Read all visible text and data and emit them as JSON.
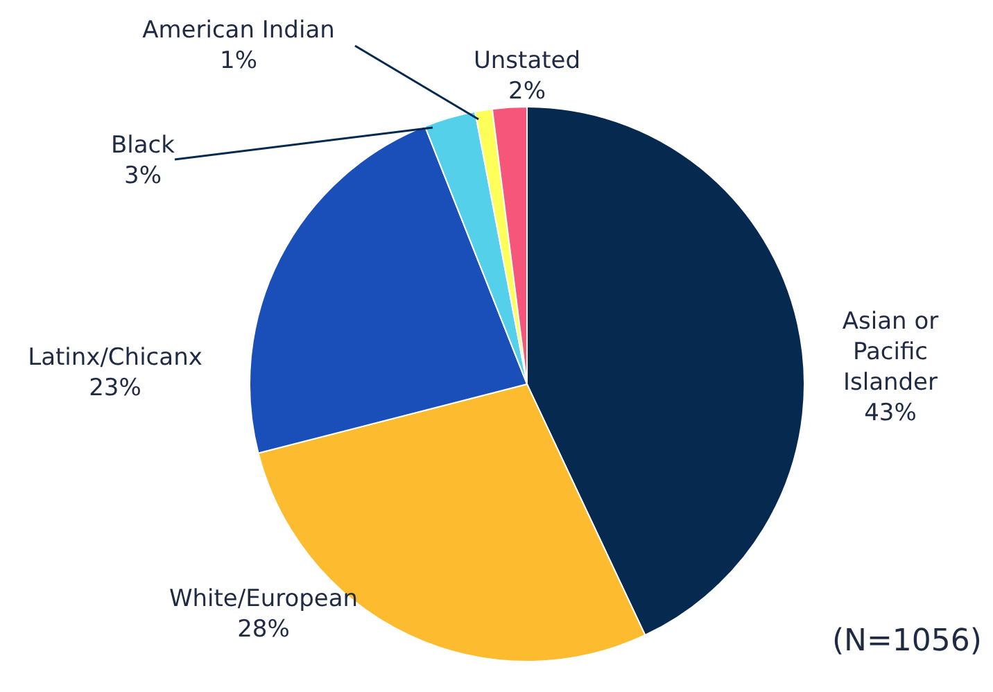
{
  "chart_data": {
    "type": "pie",
    "categories": [
      "Asian or\nPacific\nIslander",
      "White/European",
      "Latinx/Chicanx",
      "Black",
      "American Indian",
      "Unstated"
    ],
    "values": [
      43,
      28,
      23,
      3,
      1,
      2
    ],
    "value_labels": [
      "43%",
      "28%",
      "23%",
      "3%",
      "1%",
      "2%"
    ],
    "colors": [
      "#06294f",
      "#fdbb30",
      "#1a4fba",
      "#55d0ea",
      "#ffff5a",
      "#f5567a"
    ],
    "annotations": [
      "(N=1056)"
    ]
  }
}
